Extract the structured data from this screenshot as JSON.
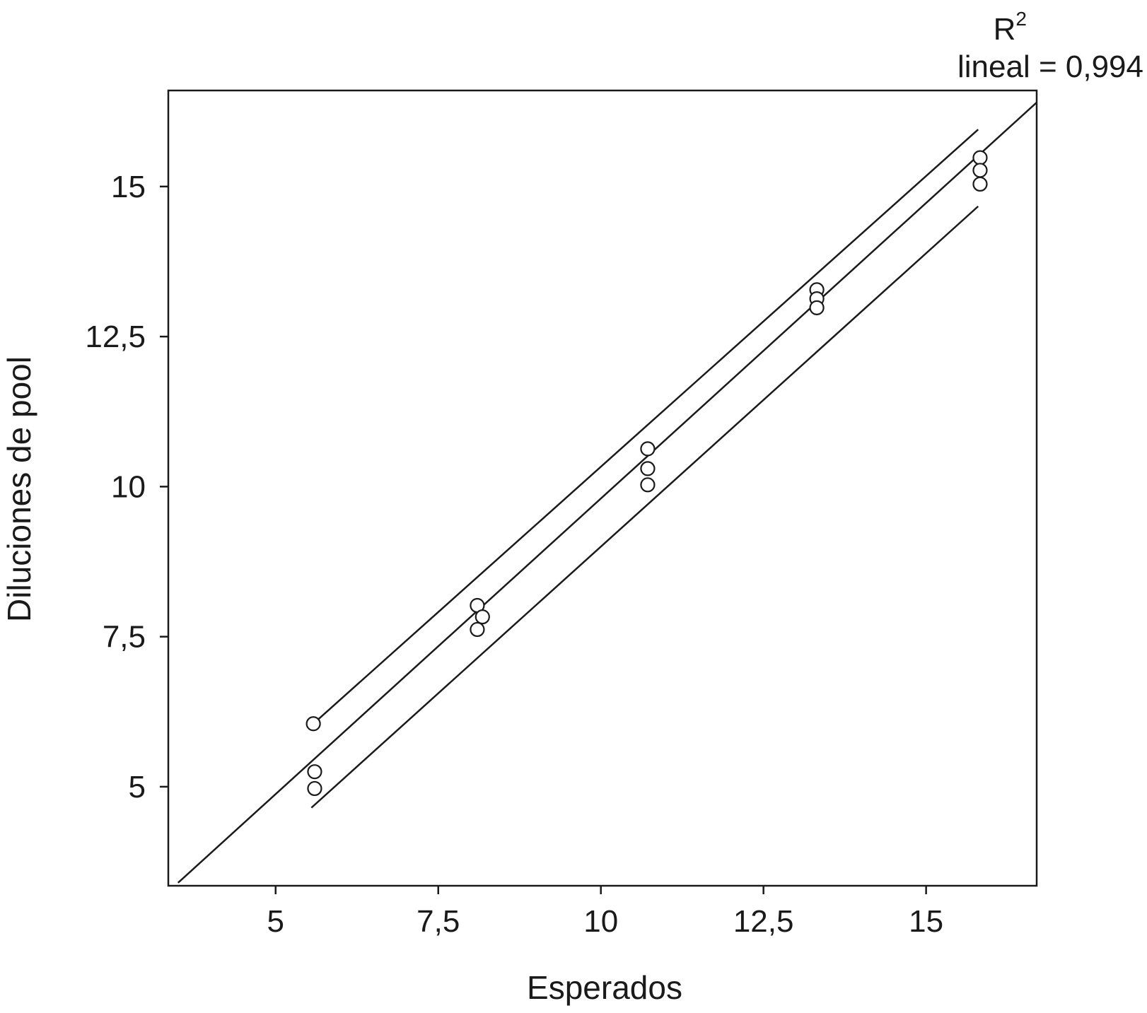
{
  "chart_data": {
    "type": "scatter",
    "xlabel": "Esperados",
    "ylabel": "Diluciones de pool",
    "xlim": [
      3.35,
      16.7
    ],
    "ylim": [
      3.35,
      16.6
    ],
    "x_ticks": [
      5,
      7.5,
      10,
      12.5,
      15
    ],
    "x_tick_labels": [
      "5",
      "7,5",
      "10",
      "12,5",
      "15"
    ],
    "y_ticks": [
      5,
      7.5,
      10,
      12.5,
      15
    ],
    "y_tick_labels": [
      "5",
      "7,5",
      "10",
      "12,5",
      "15"
    ],
    "grid": false,
    "annotation": {
      "r": "R",
      "sup": "2",
      "text": "lineal = 0,994"
    },
    "points": [
      {
        "x": 5.58,
        "y": 6.05
      },
      {
        "x": 5.6,
        "y": 5.25
      },
      {
        "x": 5.6,
        "y": 4.97
      },
      {
        "x": 8.1,
        "y": 8.02
      },
      {
        "x": 8.18,
        "y": 7.83
      },
      {
        "x": 8.1,
        "y": 7.62
      },
      {
        "x": 10.72,
        "y": 10.63
      },
      {
        "x": 10.72,
        "y": 10.3
      },
      {
        "x": 10.72,
        "y": 10.03
      },
      {
        "x": 13.32,
        "y": 13.28
      },
      {
        "x": 13.32,
        "y": 13.13
      },
      {
        "x": 13.32,
        "y": 12.98
      },
      {
        "x": 15.83,
        "y": 15.48
      },
      {
        "x": 15.83,
        "y": 15.27
      },
      {
        "x": 15.83,
        "y": 15.04
      }
    ],
    "lines": [
      {
        "role": "fit",
        "x": [
          3.5,
          16.7
        ],
        "y": [
          3.4,
          16.4
        ]
      },
      {
        "role": "upper",
        "x": [
          5.58,
          15.8
        ],
        "y": [
          6.05,
          15.95
        ]
      },
      {
        "role": "lower",
        "x": [
          5.55,
          15.8
        ],
        "y": [
          4.65,
          14.67
        ]
      }
    ]
  }
}
